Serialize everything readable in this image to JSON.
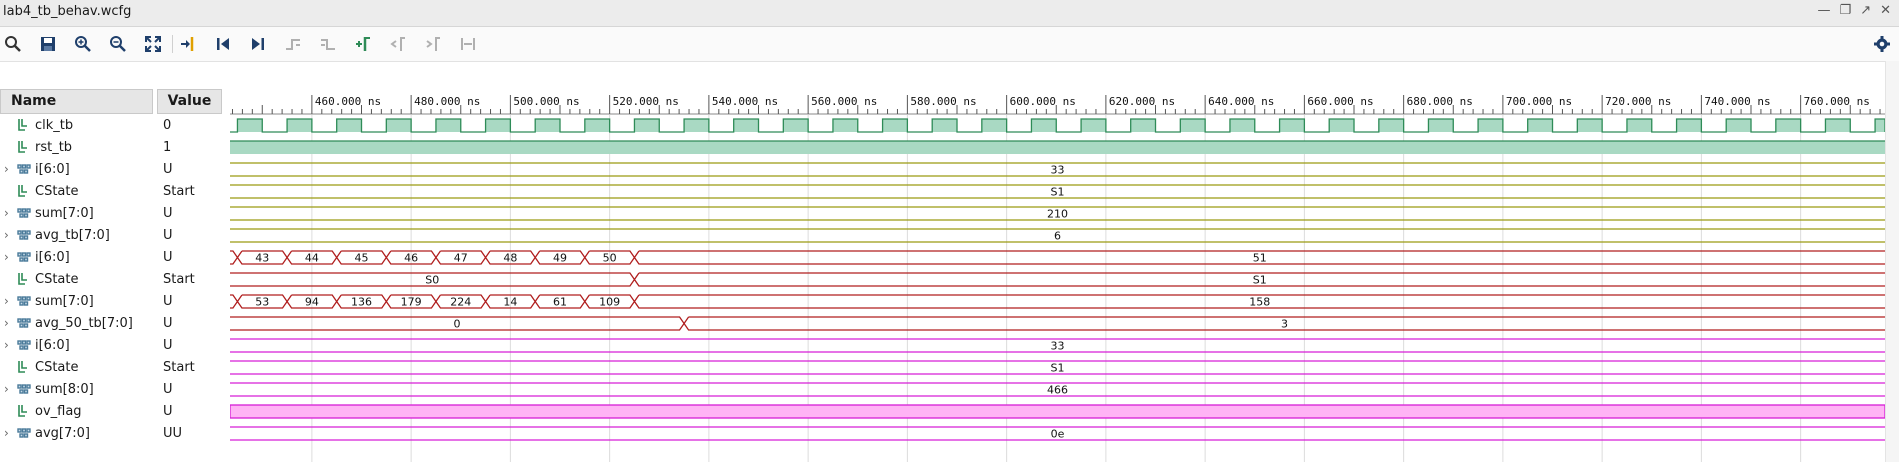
{
  "window": {
    "title": "lab4_tb_behav.wcfg"
  },
  "columns": {
    "name": "Name",
    "value": "Value"
  },
  "timeline": {
    "start_ns": 443.5,
    "end_ns": 777,
    "tick_labels": [
      "460.000 ns",
      "480.000 ns",
      "500.000 ns",
      "520.000 ns",
      "540.000 ns",
      "560.000 ns",
      "580.000 ns",
      "600.000 ns",
      "620.000 ns",
      "640.000 ns",
      "660.000 ns",
      "680.000 ns",
      "700.000 ns",
      "720.000 ns",
      "740.000 ns",
      "760.000 ns"
    ],
    "tick_values_ns": [
      460,
      480,
      500,
      520,
      540,
      560,
      580,
      600,
      620,
      640,
      660,
      680,
      700,
      720,
      740,
      760
    ],
    "clock_period_ns": 10,
    "clock_first_rise_ns": 445
  },
  "colors": {
    "group1": "#9a9a12",
    "group2": "#b01e1e",
    "group3": "#d61ed6",
    "clock": "#2e8b57",
    "clock_fill": "#a9d9c3",
    "ovflag_fill": "#ffb3f5",
    "grid": "#dcdcdc"
  },
  "signals": [
    {
      "name": "clk_tb",
      "value": "0",
      "kind": "clock",
      "expandable": false,
      "icon": "bit-signal-icon",
      "group": "clock"
    },
    {
      "name": "rst_tb",
      "value": "1",
      "kind": "bit-high",
      "expandable": false,
      "icon": "bit-signal-icon",
      "group": "clock"
    },
    {
      "name": "i[6:0]",
      "value": "U",
      "kind": "bus",
      "expandable": true,
      "icon": "bus-signal-icon",
      "group": "group1",
      "segments": [
        {
          "start": 443.5,
          "end": 777,
          "label": "33"
        }
      ]
    },
    {
      "name": "CState",
      "value": "Start",
      "kind": "bus",
      "expandable": false,
      "icon": "bit-signal-icon",
      "group": "group1",
      "segments": [
        {
          "start": 443.5,
          "end": 777,
          "label": "S1"
        }
      ]
    },
    {
      "name": "sum[7:0]",
      "value": "U",
      "kind": "bus",
      "expandable": true,
      "icon": "bus-signal-icon",
      "group": "group1",
      "segments": [
        {
          "start": 443.5,
          "end": 777,
          "label": "210"
        }
      ]
    },
    {
      "name": "avg_tb[7:0]",
      "value": "U",
      "kind": "bus",
      "expandable": true,
      "icon": "bus-signal-icon",
      "group": "group1",
      "segments": [
        {
          "start": 443.5,
          "end": 777,
          "label": "6"
        }
      ]
    },
    {
      "name": "i[6:0]",
      "value": "U",
      "kind": "bus",
      "expandable": true,
      "icon": "bus-signal-icon",
      "group": "group2",
      "segments": [
        {
          "start": 443.5,
          "end": 445,
          "label": ""
        },
        {
          "start": 445,
          "end": 455,
          "label": "43"
        },
        {
          "start": 455,
          "end": 465,
          "label": "44"
        },
        {
          "start": 465,
          "end": 475,
          "label": "45"
        },
        {
          "start": 475,
          "end": 485,
          "label": "46"
        },
        {
          "start": 485,
          "end": 495,
          "label": "47"
        },
        {
          "start": 495,
          "end": 505,
          "label": "48"
        },
        {
          "start": 505,
          "end": 515,
          "label": "49"
        },
        {
          "start": 515,
          "end": 525,
          "label": "50"
        },
        {
          "start": 525,
          "end": 777,
          "label": "51"
        }
      ]
    },
    {
      "name": "CState",
      "value": "Start",
      "kind": "bus",
      "expandable": false,
      "icon": "bit-signal-icon",
      "group": "group2",
      "segments": [
        {
          "start": 443.5,
          "end": 525,
          "label": "S0"
        },
        {
          "start": 525,
          "end": 777,
          "label": "S1"
        }
      ]
    },
    {
      "name": "sum[7:0]",
      "value": "U",
      "kind": "bus",
      "expandable": true,
      "icon": "bus-signal-icon",
      "group": "group2",
      "segments": [
        {
          "start": 443.5,
          "end": 445,
          "label": ""
        },
        {
          "start": 445,
          "end": 455,
          "label": "53"
        },
        {
          "start": 455,
          "end": 465,
          "label": "94"
        },
        {
          "start": 465,
          "end": 475,
          "label": "136"
        },
        {
          "start": 475,
          "end": 485,
          "label": "179"
        },
        {
          "start": 485,
          "end": 495,
          "label": "224"
        },
        {
          "start": 495,
          "end": 505,
          "label": "14"
        },
        {
          "start": 505,
          "end": 515,
          "label": "61"
        },
        {
          "start": 515,
          "end": 525,
          "label": "109"
        },
        {
          "start": 525,
          "end": 777,
          "label": "158"
        }
      ]
    },
    {
      "name": "avg_50_tb[7:0]",
      "value": "U",
      "kind": "bus",
      "expandable": true,
      "icon": "bus-signal-icon",
      "group": "group2",
      "segments": [
        {
          "start": 443.5,
          "end": 535,
          "label": "0"
        },
        {
          "start": 535,
          "end": 777,
          "label": "3"
        }
      ]
    },
    {
      "name": "i[6:0]",
      "value": "U",
      "kind": "bus",
      "expandable": true,
      "icon": "bus-signal-icon",
      "group": "group3",
      "segments": [
        {
          "start": 443.5,
          "end": 777,
          "label": "33"
        }
      ]
    },
    {
      "name": "CState",
      "value": "Start",
      "kind": "bus",
      "expandable": false,
      "icon": "bit-signal-icon",
      "group": "group3",
      "segments": [
        {
          "start": 443.5,
          "end": 777,
          "label": "S1"
        }
      ]
    },
    {
      "name": "sum[8:0]",
      "value": "U",
      "kind": "bus",
      "expandable": true,
      "icon": "bus-signal-icon",
      "group": "group3",
      "segments": [
        {
          "start": 443.5,
          "end": 777,
          "label": "466"
        }
      ]
    },
    {
      "name": "ov_flag",
      "value": "U",
      "kind": "bit-undefined",
      "expandable": false,
      "icon": "bit-signal-icon",
      "group": "group3"
    },
    {
      "name": "avg[7:0]",
      "value": "UU",
      "kind": "bus",
      "expandable": true,
      "icon": "bus-signal-icon",
      "group": "group3",
      "segments": [
        {
          "start": 443.5,
          "end": 777,
          "label": "0e"
        }
      ]
    }
  ]
}
